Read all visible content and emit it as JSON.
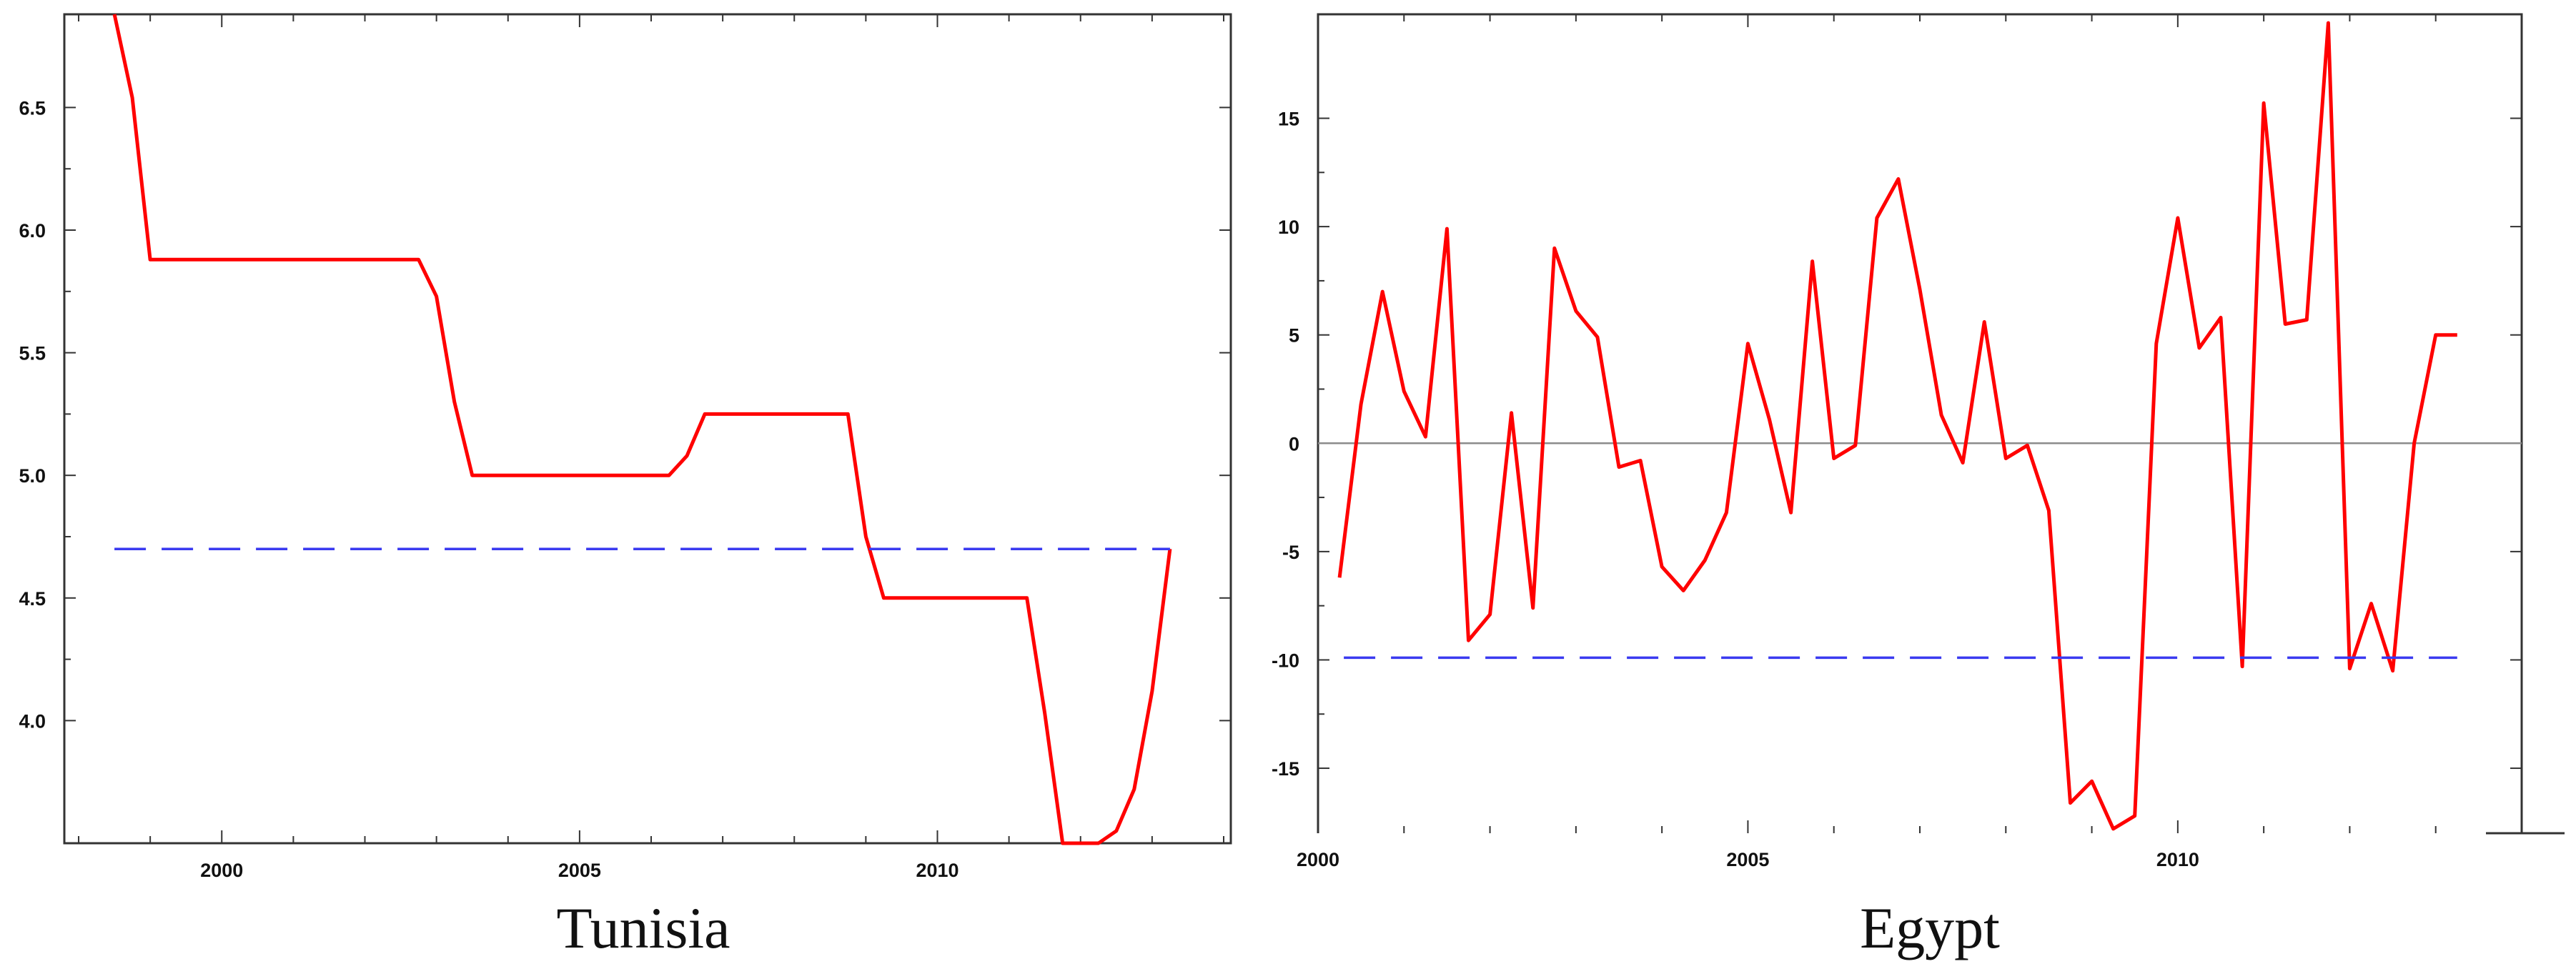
{
  "colors": {
    "series": "#ff0000",
    "reference": "#3a3af0",
    "zero_line": "#8c8c8c",
    "axes": "#333333"
  },
  "chart_data": [
    {
      "type": "line",
      "title": "Tunisia",
      "xlabel": "",
      "ylabel": "",
      "xlim": [
        1997.8,
        2014.1
      ],
      "ylim": [
        3.5,
        6.88
      ],
      "grid": false,
      "xticks": [
        {
          "value": 2000,
          "label": "2000"
        },
        {
          "value": 2005,
          "label": "2005"
        },
        {
          "value": 2010,
          "label": "2010"
        }
      ],
      "yticks": [
        {
          "value": 4.0,
          "label": "4.0"
        },
        {
          "value": 4.5,
          "label": "4.5"
        },
        {
          "value": 5.0,
          "label": "5.0"
        },
        {
          "value": 5.5,
          "label": "5.5"
        },
        {
          "value": 6.0,
          "label": "6.0"
        },
        {
          "value": 6.5,
          "label": "6.5"
        }
      ],
      "series": [
        {
          "style": "solid",
          "color": "#ff0000",
          "x": [
            1998.5,
            1998.75,
            1999.0,
            1999.25,
            2000.0,
            2001.0,
            2002.0,
            2002.75,
            2003.0,
            2003.25,
            2003.5,
            2004.0,
            2005.0,
            2006.0,
            2006.25,
            2006.5,
            2006.75,
            2007.0,
            2008.0,
            2008.75,
            2009.0,
            2009.25,
            2010.0,
            2011.0,
            2011.25,
            2011.5,
            2011.75,
            2012.0,
            2012.25,
            2012.5,
            2012.75,
            2013.0,
            2013.25
          ],
          "y": [
            6.88,
            6.54,
            5.88,
            5.88,
            5.88,
            5.88,
            5.88,
            5.88,
            5.73,
            5.3,
            5.0,
            5.0,
            5.0,
            5.0,
            5.0,
            5.08,
            5.25,
            5.25,
            5.25,
            5.25,
            4.75,
            4.5,
            4.5,
            4.5,
            4.5,
            4.03,
            3.5,
            3.5,
            3.5,
            3.55,
            3.72,
            4.12,
            4.7
          ]
        },
        {
          "style": "dashed",
          "color": "#3a3af0",
          "x": [
            1998.5,
            2013.25
          ],
          "y": [
            4.7,
            4.7
          ]
        }
      ]
    },
    {
      "type": "line",
      "title": "Egypt",
      "xlabel": "",
      "ylabel": "",
      "xlim": [
        2000.0,
        2014.0
      ],
      "ylim": [
        -18,
        19.8
      ],
      "grid": false,
      "zero_line": true,
      "xticks": [
        {
          "value": 2000,
          "label": "2000"
        },
        {
          "value": 2005,
          "label": "2005"
        },
        {
          "value": 2010,
          "label": "2010"
        }
      ],
      "yticks": [
        {
          "value": -15,
          "label": "-15"
        },
        {
          "value": -10,
          "label": "-10"
        },
        {
          "value": -5,
          "label": "-5"
        },
        {
          "value": 0,
          "label": "0"
        },
        {
          "value": 5,
          "label": "5"
        },
        {
          "value": 10,
          "label": "10"
        },
        {
          "value": 15,
          "label": "15"
        }
      ],
      "series": [
        {
          "style": "solid",
          "color": "#ff0000",
          "x": [
            2000.25,
            2000.5,
            2000.75,
            2001.0,
            2001.25,
            2001.5,
            2001.75,
            2002.0,
            2002.25,
            2002.5,
            2002.75,
            2003.0,
            2003.25,
            2003.5,
            2003.75,
            2004.0,
            2004.25,
            2004.5,
            2004.75,
            2005.0,
            2005.25,
            2005.5,
            2005.75,
            2006.0,
            2006.25,
            2006.5,
            2006.75,
            2007.0,
            2007.25,
            2007.5,
            2007.75,
            2008.0,
            2008.25,
            2008.5,
            2008.75,
            2009.0,
            2009.25,
            2009.5,
            2009.75,
            2010.0,
            2010.25,
            2010.5,
            2010.75,
            2011.0,
            2011.25,
            2011.5,
            2011.75,
            2012.0,
            2012.25,
            2012.5,
            2012.75,
            2013.0,
            2013.25
          ],
          "y": [
            -6.2,
            1.8,
            7.0,
            2.4,
            0.3,
            9.9,
            -9.1,
            -7.9,
            1.4,
            -7.6,
            9.0,
            6.1,
            4.9,
            -1.1,
            -0.8,
            -5.7,
            -6.8,
            -5.4,
            -3.2,
            4.6,
            1.1,
            -3.2,
            8.4,
            -0.7,
            -0.1,
            10.4,
            12.2,
            7.1,
            1.3,
            -0.9,
            5.6,
            -0.7,
            -0.1,
            -3.1,
            -16.6,
            -15.6,
            -17.8,
            -17.2,
            4.6,
            10.4,
            4.4,
            5.8,
            -10.3,
            15.7,
            5.5,
            5.7,
            19.4,
            -10.4,
            -7.4,
            -10.5,
            0.0,
            5.0,
            5.0
          ]
        },
        {
          "style": "dashed",
          "color": "#3a3af0",
          "x": [
            2000.3,
            2013.25
          ],
          "y": [
            -9.9,
            -9.9
          ]
        }
      ]
    }
  ]
}
